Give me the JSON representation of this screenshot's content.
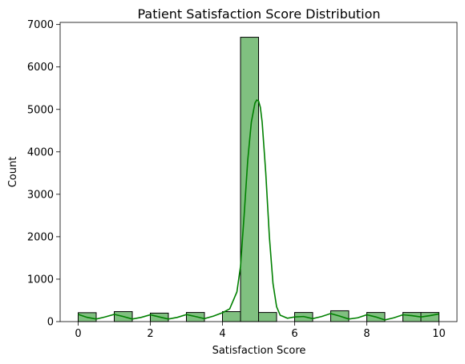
{
  "chart_data": {
    "type": "bar",
    "title": "Patient Satisfaction Score Distribution",
    "xlabel": "Satisfaction Score",
    "ylabel": "Count",
    "xlim": [
      -0.5,
      10.5
    ],
    "ylim": [
      0,
      7050
    ],
    "xticks": [
      0,
      2,
      4,
      6,
      8,
      10
    ],
    "yticks": [
      0,
      1000,
      2000,
      3000,
      4000,
      5000,
      6000,
      7000
    ],
    "bar_color": "#80c080",
    "kde_color": "#008000",
    "bins": [
      {
        "x0": 0.0,
        "x1": 0.5,
        "count": 210
      },
      {
        "x0": 0.5,
        "x1": 1.0,
        "count": 0
      },
      {
        "x0": 1.0,
        "x1": 1.5,
        "count": 235
      },
      {
        "x0": 1.5,
        "x1": 2.0,
        "count": 0
      },
      {
        "x0": 2.0,
        "x1": 2.5,
        "count": 200
      },
      {
        "x0": 2.5,
        "x1": 3.0,
        "count": 0
      },
      {
        "x0": 3.0,
        "x1": 3.5,
        "count": 215
      },
      {
        "x0": 3.5,
        "x1": 4.0,
        "count": 0
      },
      {
        "x0": 4.0,
        "x1": 4.5,
        "count": 235
      },
      {
        "x0": 4.5,
        "x1": 5.0,
        "count": 6700
      },
      {
        "x0": 5.0,
        "x1": 5.5,
        "count": 215
      },
      {
        "x0": 5.5,
        "x1": 6.0,
        "count": 0
      },
      {
        "x0": 6.0,
        "x1": 6.5,
        "count": 215
      },
      {
        "x0": 6.5,
        "x1": 7.0,
        "count": 0
      },
      {
        "x0": 7.0,
        "x1": 7.5,
        "count": 255
      },
      {
        "x0": 7.5,
        "x1": 8.0,
        "count": 0
      },
      {
        "x0": 8.0,
        "x1": 8.5,
        "count": 215
      },
      {
        "x0": 8.5,
        "x1": 9.0,
        "count": 0
      },
      {
        "x0": 9.0,
        "x1": 9.5,
        "count": 215
      },
      {
        "x0": 9.5,
        "x1": 10.0,
        "count": 215
      }
    ],
    "kde": {
      "x": [
        0,
        0.25,
        0.5,
        0.75,
        1.0,
        1.25,
        1.5,
        1.75,
        2.0,
        2.25,
        2.5,
        2.75,
        3.0,
        3.25,
        3.5,
        3.75,
        4.0,
        4.2,
        4.4,
        4.5,
        4.6,
        4.7,
        4.8,
        4.9,
        4.95,
        5.0,
        5.05,
        5.1,
        5.2,
        5.3,
        5.4,
        5.5,
        5.6,
        5.8,
        6.0,
        6.25,
        6.5,
        6.75,
        7.0,
        7.25,
        7.5,
        7.75,
        8.0,
        8.25,
        8.5,
        8.75,
        9.0,
        9.25,
        9.5,
        9.75,
        10.0
      ],
      "y": [
        170,
        100,
        60,
        110,
        170,
        120,
        60,
        100,
        160,
        110,
        60,
        100,
        165,
        120,
        70,
        130,
        210,
        300,
        700,
        1300,
        2500,
        3800,
        4700,
        5150,
        5220,
        5200,
        5050,
        4700,
        3500,
        2000,
        900,
        350,
        150,
        80,
        110,
        120,
        70,
        120,
        190,
        130,
        60,
        90,
        160,
        110,
        40,
        90,
        160,
        140,
        110,
        140,
        180
      ]
    }
  }
}
